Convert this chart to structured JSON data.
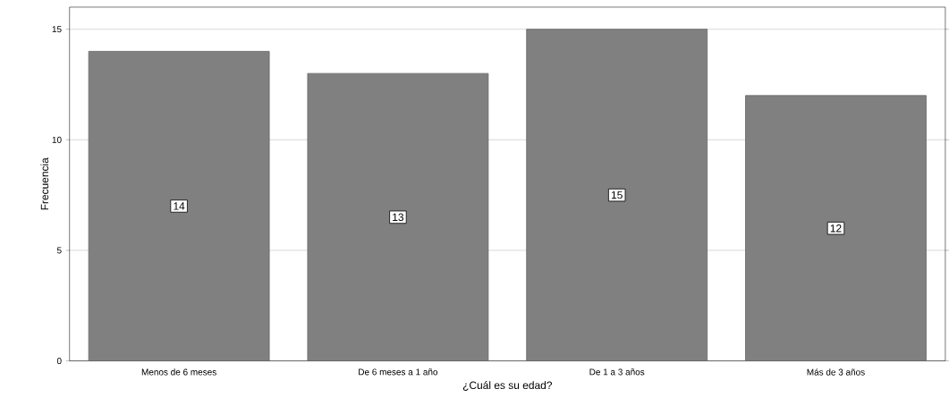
{
  "chart_data": {
    "type": "bar",
    "xlabel": "¿Cuál es su edad?",
    "ylabel": "Frecuencia",
    "categories": [
      "Menos de 6 meses",
      "De 6 meses a 1 año",
      "De 1 a 3 años",
      "Más de 3 años"
    ],
    "values": [
      14,
      13,
      15,
      12
    ],
    "color": "#808080",
    "ylim": [
      0,
      16
    ],
    "yticks": [
      0,
      5,
      10,
      15
    ],
    "grid": "y",
    "data_labels": true
  }
}
